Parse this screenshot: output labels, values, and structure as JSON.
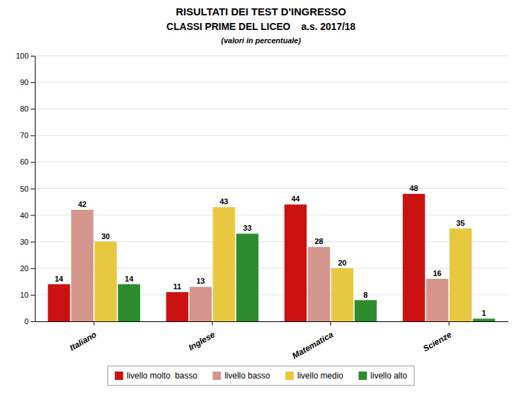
{
  "chart_data": {
    "type": "bar",
    "title": "RISULTATI DEI TEST D'INGRESSO",
    "subtitle": "CLASSI PRIME DEL LICEO    a.s. 2017/18",
    "annotations": [
      "(valori in percentuale)"
    ],
    "categories": [
      "Italiano",
      "Inglese",
      "Matematica",
      "Scienze"
    ],
    "series": [
      {
        "name": "livello molto  basso",
        "color": "#CC1111",
        "values": [
          14,
          11,
          44,
          48
        ]
      },
      {
        "name": "livello basso",
        "color": "#D4968C",
        "values": [
          42,
          13,
          28,
          16
        ]
      },
      {
        "name": "livello medio",
        "color": "#E8C840",
        "values": [
          30,
          43,
          20,
          35
        ]
      },
      {
        "name": "livello alto",
        "color": "#2D8B2D",
        "values": [
          14,
          33,
          8,
          1
        ]
      }
    ],
    "ylim": [
      0,
      100
    ],
    "yticks": [
      0,
      10,
      20,
      30,
      40,
      50,
      60,
      70,
      80,
      90,
      100
    ],
    "grid": true,
    "data_labels": true,
    "legend": "bottom"
  }
}
